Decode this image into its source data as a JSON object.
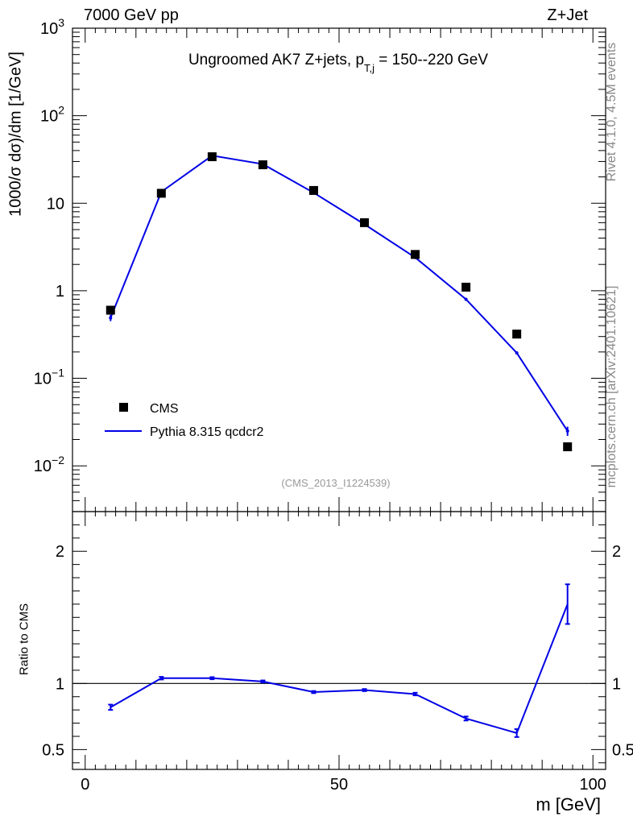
{
  "header": {
    "left": "7000 GeV pp",
    "right": "Z+Jet"
  },
  "side_labels": {
    "rivet": "Rivet 4.1.0,  4.5M events",
    "mcplots": "mcplots.cern.ch [arXiv:2401.10621]"
  },
  "colors": {
    "mc": "#0000e6",
    "data": "#000000",
    "watermark": "#999999"
  },
  "chart_data": [
    {
      "type": "scatter",
      "panel": "main",
      "title": "Ungroomed AK7 Z+jets, p",
      "title_sub": "T,j",
      "title_tail": " = 150--220 GeV",
      "ylabel": "1000/σ  dσ)/dm [1/GeV]",
      "xlabel": "",
      "yscale": "log",
      "ylim": [
        0.003,
        1000
      ],
      "xlim": [
        -2.5,
        102.5
      ],
      "y_ticks": [
        {
          "v": 1000,
          "base": "10",
          "exp": "3"
        },
        {
          "v": 100,
          "base": "10",
          "exp": "2"
        },
        {
          "v": 10,
          "base": "10",
          "exp": ""
        },
        {
          "v": 1,
          "base": "1",
          "exp": ""
        },
        {
          "v": 0.1,
          "base": "10",
          "exp": "−1"
        },
        {
          "v": 0.01,
          "base": "10",
          "exp": "−2"
        }
      ],
      "watermark": "(CMS_2013_I1224539)",
      "legend": {
        "position": "bottom-left",
        "entries": [
          {
            "name": "CMS",
            "marker": "square"
          },
          {
            "name": "Pythia 8.315 qcdcr2",
            "marker": "line"
          }
        ]
      },
      "series": [
        {
          "name": "CMS",
          "x": [
            5,
            15,
            25,
            35,
            45,
            55,
            65,
            75,
            85,
            95
          ],
          "y": [
            0.6,
            13.0,
            34.0,
            27.5,
            14.0,
            6.0,
            2.6,
            1.1,
            0.32,
            0.0165
          ]
        },
        {
          "name": "Pythia 8.315 qcdcr2",
          "x": [
            5,
            15,
            25,
            35,
            45,
            55,
            65,
            75,
            85,
            95
          ],
          "y": [
            0.49,
            13.5,
            35.0,
            28.0,
            13.2,
            5.75,
            2.4,
            0.8,
            0.195,
            0.025
          ],
          "yerr": [
            0.04,
            0.2,
            0.3,
            0.3,
            0.15,
            0.08,
            0.04,
            0.015,
            0.006,
            0.003
          ]
        }
      ]
    },
    {
      "type": "line",
      "panel": "ratio",
      "ylabel": "Ratio to CMS",
      "xlabel": "m [GeV]",
      "ylim": [
        0.35,
        2.3
      ],
      "xlim": [
        -2.5,
        102.5
      ],
      "y_ticks": [
        0.5,
        1,
        2
      ],
      "y_tick_labels": [
        "0.5",
        "1",
        "2"
      ],
      "x_ticks": [
        0,
        50,
        100
      ],
      "x_tick_labels": [
        "0",
        "50",
        "100"
      ],
      "reference_line": 1,
      "series": [
        {
          "name": "Pythia 8.315 qcdcr2",
          "x": [
            5,
            15,
            25,
            35,
            45,
            55,
            65,
            75,
            85,
            95
          ],
          "y": [
            0.82,
            1.04,
            1.04,
            1.015,
            0.935,
            0.95,
            0.92,
            0.735,
            0.625,
            1.6
          ],
          "yerr": [
            0.02,
            0.01,
            0.008,
            0.008,
            0.008,
            0.008,
            0.01,
            0.015,
            0.03,
            0.15
          ]
        }
      ]
    }
  ]
}
